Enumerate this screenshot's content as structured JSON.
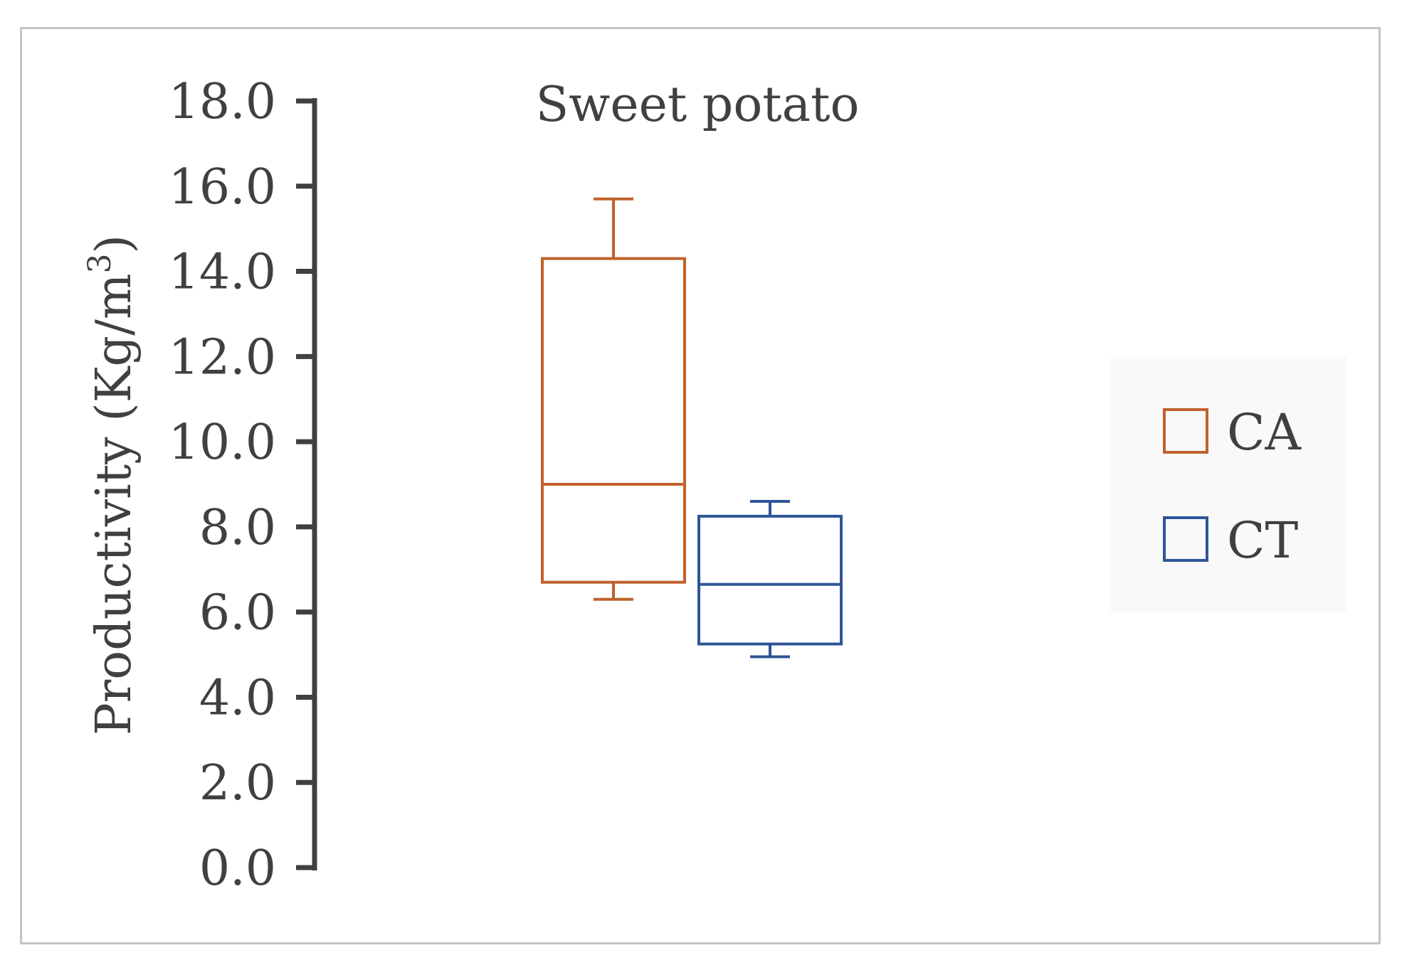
{
  "chart_data": {
    "type": "box",
    "title": "Sweet potato",
    "ylabel_main": "Productivity (Kg/m",
    "ylabel_sup": "3",
    "ylabel_close": ")",
    "xlabel": "",
    "ylim": [
      0,
      18
    ],
    "ytick_values": [
      0,
      2,
      4,
      6,
      8,
      10,
      12,
      14,
      16,
      18
    ],
    "yticks": [
      "0.0",
      "2.0",
      "4.0",
      "6.0",
      "8.0",
      "10.0",
      "12.0",
      "14.0",
      "16.0",
      "18.0"
    ],
    "grid": false,
    "legend_position": "right",
    "series": [
      {
        "name": "CA",
        "color": "#c0622a",
        "min": 6.3,
        "q1": 6.7,
        "median": 9.0,
        "q3": 14.3,
        "max": 15.7
      },
      {
        "name": "CT",
        "color": "#2f5597",
        "min": 4.95,
        "q1": 5.25,
        "median": 6.65,
        "q3": 8.25,
        "max": 8.6
      }
    ]
  },
  "colors": {
    "axis": "#404040",
    "frame": "#c4c4c4",
    "legend_bg": "#f9f9f9"
  }
}
